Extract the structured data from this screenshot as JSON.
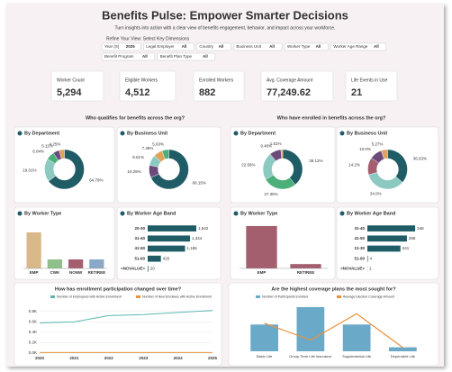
{
  "header": {
    "title": "Benefits Pulse: Empower Smarter Decisions",
    "subtitle": "Turn insights into action with a clear view of benefits engagement, behavior, and impact across your workforce.",
    "filter_heading": "Refine Your View: Select Key Dimensions"
  },
  "filters": [
    {
      "label": "Year (S)",
      "value": "2025"
    },
    {
      "label": "Legal Employer",
      "value": "All"
    },
    {
      "label": "Country",
      "value": "All"
    },
    {
      "label": "Business Unit",
      "value": "All"
    },
    {
      "label": "Worker Type",
      "value": "All"
    },
    {
      "label": "Worker Age Range",
      "value": "All"
    },
    {
      "label": "Benefit Program",
      "value": "All"
    },
    {
      "label": "Benefit Plan Type",
      "value": "All"
    }
  ],
  "kpis": [
    {
      "label": "Worker Count",
      "value": "5,294"
    },
    {
      "label": "Eligible Workers",
      "value": "4,512"
    },
    {
      "label": "Enrolled Workers",
      "value": "882"
    },
    {
      "label": "Avg. Coverage Amount",
      "value": "77,249.62"
    },
    {
      "label": "Life Events in Use",
      "value": "21"
    }
  ],
  "sections": [
    "Who qualifies for benefits across the org?",
    "Who have enrolled in benefits across the org?"
  ],
  "chart_data": [
    {
      "type": "donut",
      "title": "By Department",
      "values": [
        64.79,
        19.01,
        6.84,
        5.11,
        4.25
      ],
      "value_labels": [
        "64.79%",
        "19.01%",
        "6.84%",
        "5.11%",
        "4.25%"
      ],
      "colors": [
        "#1f5c66",
        "#8cc9c0",
        "#4caf7a",
        "#6b4a7a",
        "#e0a15a"
      ]
    },
    {
      "type": "donut",
      "title": "By Business Unit",
      "values": [
        68.15,
        10.25,
        8.61,
        7.36,
        5.63
      ],
      "value_labels": [
        "68.15%",
        "10.25%",
        "8.61%",
        "7.36%",
        "5.63%"
      ],
      "colors": [
        "#1f5c66",
        "#6b4a7a",
        "#8cc9c0",
        "#e0a15a",
        "#4caf7a"
      ]
    },
    {
      "type": "donut",
      "title": "By Department",
      "values": [
        39.12,
        27.35,
        22.56,
        9.46,
        1.51
      ],
      "value_labels": [
        "39.12%",
        "27.35%",
        "22.56%",
        "9.46%",
        "1.51%"
      ],
      "colors": [
        "#1f5c66",
        "#4caf7a",
        "#8cc9c0",
        "#6b4a7a",
        "#e0a15a"
      ]
    },
    {
      "type": "donut",
      "title": "By Business Unit",
      "values": [
        36.53,
        34.0,
        14.2,
        10.0,
        5.27
      ],
      "value_labels": [
        "36.53%",
        "34.0%",
        "14.2%",
        "10.0%",
        "5.27%"
      ],
      "colors": [
        "#1f5c66",
        "#8cc9c0",
        "#a35f6e",
        "#6b4a7a",
        "#e0a15a"
      ]
    },
    {
      "type": "bar",
      "title": "By Worker Type",
      "categories": [
        "EMP",
        "CWK",
        "NONW",
        "RETIREE"
      ],
      "values": [
        4,
        1,
        1,
        1
      ],
      "colors": [
        "#d9b98a",
        "#8fbf8a",
        "#a35f6e",
        "#8aa9c9"
      ],
      "ylim": [
        0,
        5
      ]
    },
    {
      "type": "hbar",
      "title": "By Worker Age Band",
      "categories": [
        "20-30",
        "31-40",
        "41-50",
        "51-60",
        "<NOVALUE>"
      ],
      "values": [
        1542,
        1344,
        1186,
        420,
        20
      ],
      "value_labels": [
        "1,542",
        "1,344",
        "1,186",
        "420",
        "20"
      ],
      "color": "#1f5c66",
      "xlim": [
        0,
        1800
      ]
    },
    {
      "type": "bar",
      "title": "By Worker Type",
      "categories": [
        "EMP",
        "RETIREE"
      ],
      "values": [
        800,
        82
      ],
      "colors": [
        "#a35f6e",
        "#a35f6e"
      ],
      "ylim": [
        0,
        850
      ]
    },
    {
      "type": "hbar",
      "title": "By Worker Age Band",
      "categories": [
        "31-40",
        "41-50",
        "21-30",
        "51-60",
        "<NOVALUE>"
      ],
      "values": [
        348,
        288,
        241,
        4,
        1
      ],
      "value_labels": [
        "348",
        "288",
        "241",
        "4",
        "1"
      ],
      "color": "#1f5c66",
      "xlim": [
        0,
        400
      ]
    },
    {
      "type": "line",
      "title": "How has enrollment participation changed over time?",
      "x": [
        "2020",
        "2021",
        "2022",
        "2023",
        "2024",
        "2025"
      ],
      "series": [
        {
          "name": "Number of Employees with Active Enrollment",
          "color": "#5bb8b0",
          "values": [
            0.58,
            0.6,
            0.72,
            0.74,
            0.78,
            0.82
          ]
        },
        {
          "name": "Number of New Enrollees with Active Enrollment",
          "color": "#e8913a",
          "values": [
            0.01,
            0.01,
            0.01,
            0.01,
            0.01,
            0.01
          ]
        }
      ],
      "ylim": [
        0,
        0.9
      ],
      "yticks": [
        {
          "value": 0,
          "label": "0.0K"
        },
        {
          "value": 0.2,
          "label": "0.2K"
        },
        {
          "value": 0.4,
          "label": "0.4K"
        },
        {
          "value": 0.6,
          "label": "0.6K"
        },
        {
          "value": 0.8,
          "label": "0.8K"
        }
      ],
      "grid": true
    },
    {
      "type": "combo",
      "title": "Are the highest coverage plans the most sought for?",
      "categories": [
        "Basic Life",
        "Group Term Life Insurance",
        "Supplemental Life",
        "Dependent Life"
      ],
      "series": [
        {
          "name": "Number of Participants Enrolled",
          "color": "#6aaac8",
          "values": [
            400,
            660,
            400,
            60
          ]
        },
        {
          "name": "Average Election Coverage Amount",
          "color": "#e8913a",
          "values": [
            150000,
            60000,
            200000,
            20000
          ],
          "axis": "y2"
        }
      ],
      "ylim": [
        0,
        700
      ],
      "y2lim": [
        0,
        250000
      ]
    }
  ]
}
